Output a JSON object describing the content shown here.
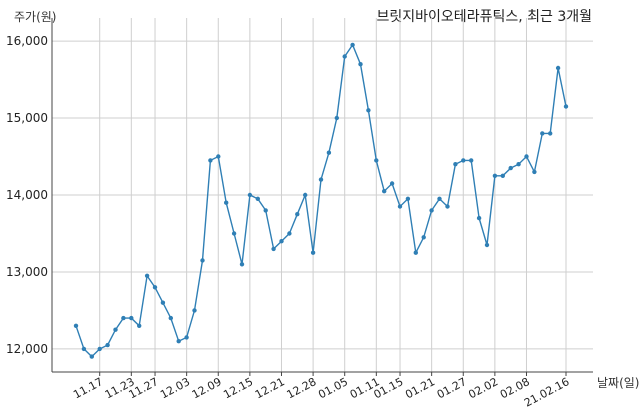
{
  "chart_data": {
    "type": "line",
    "title": "브릿지바이오테라퓨틱스, 최근 3개월",
    "ylabel": "주가(원)",
    "xlabel": "날짜(일)",
    "ylim": [
      11700,
      16300
    ],
    "y_ticks": [
      12000,
      13000,
      14000,
      15000,
      16000
    ],
    "y_tick_labels": [
      "12,000",
      "13,000",
      "14,000",
      "15,000",
      "16,000"
    ],
    "x_tick_labels": [
      "11.17",
      "11.23",
      "11.27",
      "12.03",
      "12.09",
      "12.15",
      "12.21",
      "12.28",
      "01.05",
      "01.11",
      "01.15",
      "01.21",
      "01.27",
      "02.02",
      "02.08",
      "21.02.16"
    ],
    "x_tick_index": [
      3,
      7,
      10,
      14,
      18,
      22,
      26,
      30,
      34,
      38,
      41,
      45,
      49,
      53,
      57,
      62
    ],
    "grid": true,
    "color": "#2f7fb5",
    "series": [
      {
        "values": [
          12300,
          12000,
          11900,
          12000,
          12050,
          12250,
          12400,
          12400,
          12300,
          12950,
          12800,
          12600,
          12400,
          12100,
          12150,
          12500,
          13150,
          14450,
          14500,
          13900,
          13500,
          13100,
          14000,
          13950,
          13800,
          13300,
          13400,
          13500,
          13750,
          14000,
          13250,
          14200,
          14550,
          15000,
          15800,
          15950,
          15700,
          15100,
          14450,
          14050,
          14150,
          13850,
          13950,
          13250,
          13450,
          13800,
          13950,
          13850,
          14400,
          14450,
          14450,
          13700,
          13350,
          14250,
          14250,
          14350,
          14400,
          14500,
          14300,
          14800,
          14800,
          15650,
          15150
        ]
      }
    ]
  }
}
